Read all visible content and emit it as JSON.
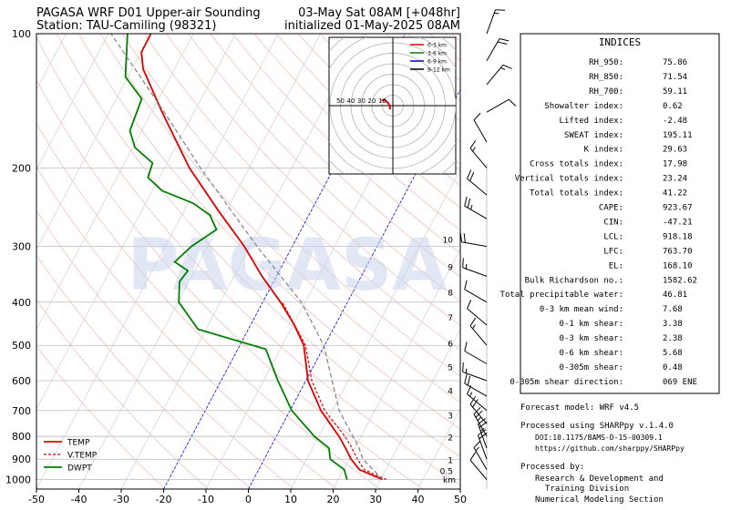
{
  "chart_data": {
    "type": "skewt",
    "title": "PAGASA WRF D01 Upper-air Sounding",
    "subtitle": "Station: TAU-Camiling (98321)",
    "title_right": "03-May Sat 08AM [+048hr]",
    "subtitle_right": "initialized 01-May-2025 08AM",
    "xlim": [
      -50,
      50
    ],
    "xticks": [
      -50,
      -40,
      -30,
      -20,
      -10,
      0,
      10,
      20,
      30,
      40,
      50
    ],
    "ylim": [
      1050,
      100
    ],
    "yticks": [
      100,
      200,
      300,
      400,
      500,
      600,
      700,
      800,
      900,
      1000
    ],
    "log_y": true,
    "grid": true,
    "highlight_isotherms": [
      -20,
      0
    ],
    "highlight_color": "#0000ff",
    "legend_position": "lower left",
    "watermark": "PAGASA",
    "series": [
      {
        "name": "TEMP",
        "color": "#e00000",
        "dash": false,
        "pressure": [
          1000,
          950,
          900,
          850,
          800,
          700,
          600,
          500,
          450,
          400,
          350,
          300,
          250,
          200,
          150,
          120,
          110,
          100
        ],
        "values": [
          30.5,
          23.8,
          20.5,
          17.8,
          14.8,
          7.3,
          0.5,
          -4.9,
          -9.7,
          -15.8,
          -23.4,
          -31.3,
          -41.8,
          -54.1,
          -67.5,
          -77.4,
          -79.9,
          -80.0
        ]
      },
      {
        "name": "V.TEMP",
        "color": "#e00000",
        "dash": true,
        "pressure": [
          1000,
          950,
          900,
          850,
          800,
          700,
          600,
          500,
          400
        ],
        "values": [
          31.4,
          24.9,
          22.0,
          19.3,
          16.2,
          8.2,
          1.4,
          -4.5,
          -15.4
        ]
      },
      {
        "name": "DWPT",
        "color": "#008000",
        "dash": false,
        "pressure": [
          1000,
          950,
          900,
          850,
          800,
          700,
          600,
          510,
          460,
          400,
          360,
          340,
          325,
          300,
          275,
          255,
          240,
          225,
          210,
          195,
          180,
          165,
          140,
          125,
          100
        ],
        "values": [
          22.1,
          20.2,
          15.6,
          13.9,
          9.0,
          0.4,
          -6.6,
          -13.4,
          -31.9,
          -39.8,
          -42.2,
          -41.6,
          -45.8,
          -43.8,
          -40.0,
          -43.4,
          -48.8,
          -57.7,
          -62.7,
          -63.4,
          -69.5,
          -72.8,
          -74.0,
          -80.6,
          -85.5
        ]
      },
      {
        "color": "#808080",
        "dash": true,
        "pressure": [
          1000,
          900,
          850,
          700,
          500,
          400,
          300,
          200,
          150,
          100
        ],
        "values": [
          30.5,
          23.3,
          21.0,
          11.6,
          -0.2,
          -10.9,
          -28.3,
          -51.5,
          -67.0,
          -89.4
        ]
      }
    ],
    "height_axis": {
      "label": "km",
      "values": [
        0.5,
        1,
        2,
        3,
        4,
        5,
        6,
        7,
        8,
        9,
        10
      ],
      "pressure": [
        958,
        906,
        805,
        719,
        633,
        561,
        496,
        434,
        381,
        334,
        290
      ]
    },
    "wind_barbs": {
      "pressure": [
        100,
        115,
        130,
        150,
        175,
        200,
        230,
        260,
        300,
        350,
        400,
        450,
        500,
        550,
        600,
        650,
        700,
        750,
        800,
        850,
        900,
        950,
        1000
      ],
      "direction": [
        20,
        30,
        40,
        60,
        330,
        320,
        310,
        300,
        280,
        290,
        300,
        310,
        320,
        300,
        290,
        300,
        310,
        320,
        330,
        340,
        340,
        330,
        320
      ],
      "speed": [
        15,
        20,
        15,
        10,
        10,
        15,
        20,
        25,
        20,
        15,
        10,
        10,
        15,
        10,
        15,
        20,
        15,
        20,
        25,
        25,
        20,
        15,
        10
      ]
    },
    "hodograph": {
      "rings": [
        10,
        20,
        30,
        40,
        50
      ],
      "legend": [
        {
          "name": "0-3 km",
          "color": "#e00000"
        },
        {
          "name": "3-6 km",
          "color": "#008000"
        },
        {
          "name": "6-9 km",
          "color": "#0000cc"
        },
        {
          "name": "9-12 km",
          "color": "#000000"
        }
      ],
      "trace": {
        "color": "#e00000",
        "u": [
          -11,
          -8,
          -5,
          -3,
          -2.6
        ],
        "v": [
          5,
          5.5,
          3,
          0,
          -3.5
        ]
      }
    }
  },
  "indices": {
    "title": "INDICES",
    "rows": [
      [
        "RH_950:",
        "75.86"
      ],
      [
        "RH_850:",
        "71.54"
      ],
      [
        "RH_700:",
        "59.11"
      ],
      [
        "Showalter index:",
        "0.62"
      ],
      [
        "Lifted index:",
        "-2.48"
      ],
      [
        "SWEAT index:",
        "195.11"
      ],
      [
        "K index:",
        "29.63"
      ],
      [
        "Cross totals index:",
        "17.98"
      ],
      [
        "Vertical totals index:",
        "23.24"
      ],
      [
        "Total totals index:",
        "41.22"
      ],
      [
        "CAPE:",
        "923.67"
      ],
      [
        "CIN:",
        "-47.21"
      ],
      [
        "LCL:",
        "918.18"
      ],
      [
        "LFC:",
        "763.70"
      ],
      [
        "EL:",
        "168.10"
      ],
      [
        "Bulk Richardson no.:",
        "1582.62"
      ],
      [
        "Total precipitable water:",
        "46.81"
      ],
      [
        "0-3 km mean wind:",
        "7.68"
      ],
      [
        "0-1 km shear:",
        "3.38"
      ],
      [
        "0-3 km shear:",
        "2.38"
      ],
      [
        "0-6 km shear:",
        "5.68"
      ],
      [
        "0-305m shear:",
        "0.48"
      ],
      [
        "0-305m shear direction:",
        "069 ENE"
      ]
    ]
  },
  "footer": [
    "Forecast model: WRF v4.5",
    "Processed using SHARPpy v.1.4.0",
    "DOI:10.1175/BAMS-D-15-00309.1",
    "https://github.com/sharppy/SHARPpy",
    "Processed by:",
    "Research & Development and",
    "Training Division",
    "Numerical Modeling Section"
  ]
}
